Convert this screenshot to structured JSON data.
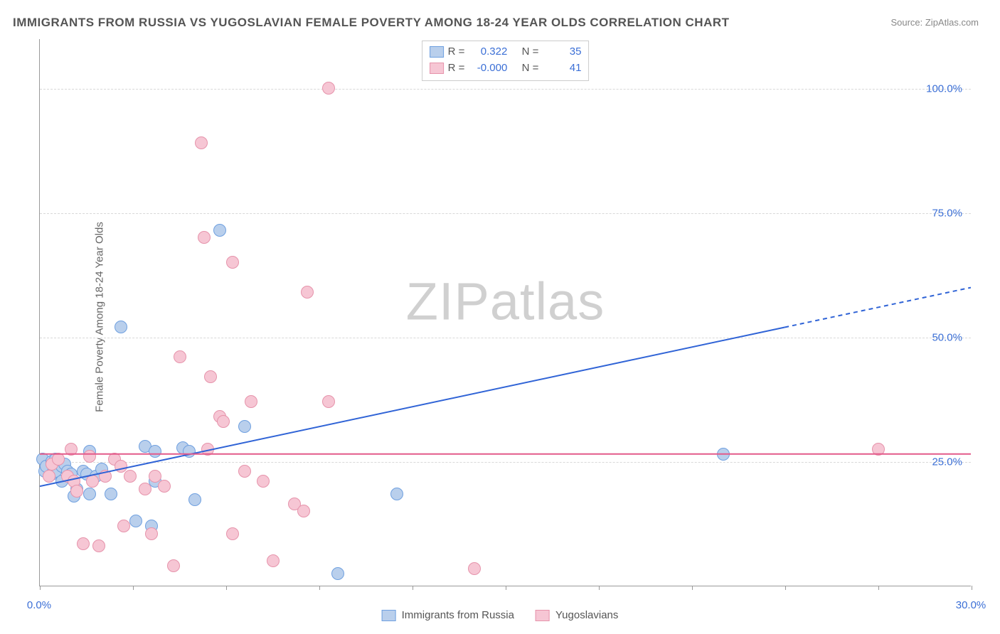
{
  "title": "IMMIGRANTS FROM RUSSIA VS YUGOSLAVIAN FEMALE POVERTY AMONG 18-24 YEAR OLDS CORRELATION CHART",
  "source": "Source: ZipAtlas.com",
  "y_axis_label": "Female Poverty Among 18-24 Year Olds",
  "watermark_bold": "ZIP",
  "watermark_light": "atlas",
  "chart": {
    "type": "scatter",
    "xlim": [
      0,
      30
    ],
    "ylim": [
      0,
      110
    ],
    "x_ticks": [
      0,
      3,
      6,
      9,
      12,
      15,
      18,
      21,
      24,
      27,
      30
    ],
    "x_tick_labels": {
      "0": "0.0%",
      "30": "30.0%"
    },
    "y_gridlines": [
      25,
      50,
      75,
      100
    ],
    "y_tick_labels": {
      "25": "25.0%",
      "50": "50.0%",
      "75": "75.0%",
      "100": "100.0%"
    },
    "background_color": "#ffffff",
    "grid_color": "#d8d8d8",
    "axis_color": "#999999",
    "label_color": "#3b6fd6",
    "point_radius": 9,
    "series": [
      {
        "name": "Immigrants from Russia",
        "fill": "#b9cfec",
        "stroke": "#6fa0e0",
        "R": "0.322",
        "N": "35",
        "regression": {
          "x1": 0,
          "y1": 20,
          "x2": 30,
          "y2": 60,
          "dash_from_x": 24,
          "color": "#2f63d6",
          "width": 2
        },
        "points": [
          [
            0.1,
            25.5
          ],
          [
            0.15,
            23
          ],
          [
            0.2,
            24
          ],
          [
            0.4,
            25
          ],
          [
            0.4,
            22.5
          ],
          [
            0.5,
            25.5
          ],
          [
            0.5,
            23
          ],
          [
            0.7,
            24
          ],
          [
            0.7,
            21
          ],
          [
            0.8,
            24.5
          ],
          [
            0.9,
            23
          ],
          [
            1.0,
            22.5
          ],
          [
            1.1,
            18
          ],
          [
            1.2,
            19.5
          ],
          [
            1.4,
            23
          ],
          [
            1.5,
            22.5
          ],
          [
            1.6,
            27
          ],
          [
            1.6,
            18.5
          ],
          [
            1.8,
            22
          ],
          [
            2.0,
            23.5
          ],
          [
            2.3,
            18.5
          ],
          [
            2.6,
            52
          ],
          [
            3.1,
            13
          ],
          [
            3.4,
            28
          ],
          [
            3.6,
            12
          ],
          [
            3.7,
            21
          ],
          [
            3.7,
            27
          ],
          [
            4.6,
            27.7
          ],
          [
            4.8,
            27
          ],
          [
            5.0,
            17.3
          ],
          [
            5.8,
            71.5
          ],
          [
            6.6,
            32
          ],
          [
            9.6,
            2.5
          ],
          [
            11.5,
            18.5
          ],
          [
            22.0,
            26.5
          ]
        ]
      },
      {
        "name": "Yugoslavians",
        "fill": "#f6c6d4",
        "stroke": "#e693ab",
        "R": "-0.000",
        "N": "41",
        "regression": {
          "x1": 0,
          "y1": 26.5,
          "x2": 30,
          "y2": 26.5,
          "dash_from_x": 30,
          "color": "#e35a8a",
          "width": 2
        },
        "points": [
          [
            0.3,
            22
          ],
          [
            0.4,
            24.5
          ],
          [
            0.6,
            25.5
          ],
          [
            0.9,
            22
          ],
          [
            1.0,
            27.5
          ],
          [
            1.1,
            21
          ],
          [
            1.2,
            19
          ],
          [
            1.4,
            8.5
          ],
          [
            1.6,
            26
          ],
          [
            1.7,
            21
          ],
          [
            1.9,
            8
          ],
          [
            2.1,
            22
          ],
          [
            2.4,
            25.5
          ],
          [
            2.6,
            24
          ],
          [
            2.7,
            12
          ],
          [
            2.9,
            22
          ],
          [
            3.4,
            19.5
          ],
          [
            3.6,
            10.5
          ],
          [
            3.7,
            22
          ],
          [
            4.0,
            20
          ],
          [
            4.3,
            4
          ],
          [
            4.5,
            46
          ],
          [
            5.2,
            89
          ],
          [
            5.3,
            70
          ],
          [
            5.4,
            27.5
          ],
          [
            5.5,
            42
          ],
          [
            5.8,
            34
          ],
          [
            5.9,
            33
          ],
          [
            6.2,
            10.5
          ],
          [
            6.2,
            65
          ],
          [
            6.6,
            23
          ],
          [
            6.8,
            37
          ],
          [
            7.2,
            21
          ],
          [
            7.5,
            5
          ],
          [
            8.2,
            16.5
          ],
          [
            8.5,
            15
          ],
          [
            8.6,
            59
          ],
          [
            9.3,
            37
          ],
          [
            9.3,
            100
          ],
          [
            14.0,
            3.5
          ],
          [
            27.0,
            27.5
          ]
        ]
      }
    ]
  },
  "legend_labels": {
    "R": "R =",
    "N": "N ="
  }
}
